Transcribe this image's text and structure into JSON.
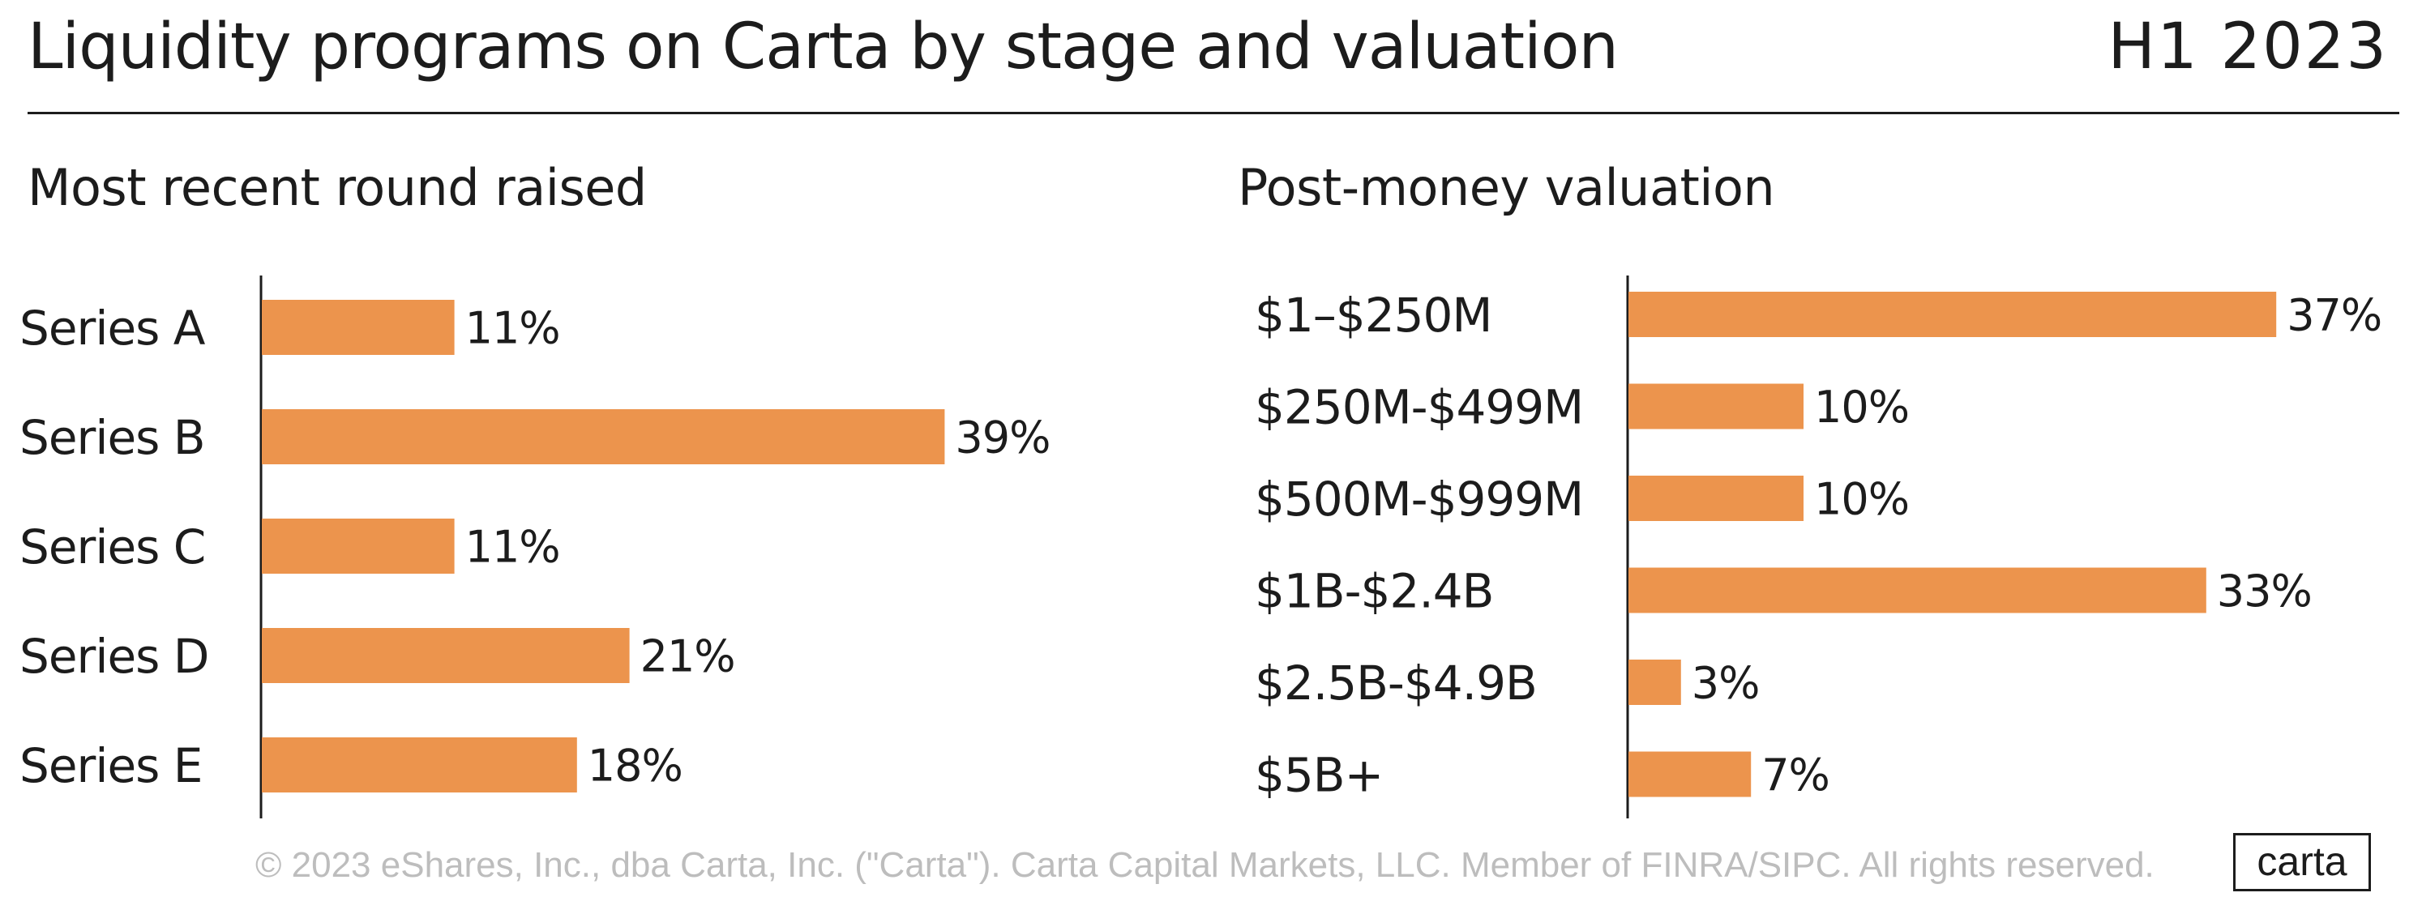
{
  "header": {
    "title": "Liquidity programs on Carta by stage and valuation",
    "period": "H1 2023"
  },
  "colors": {
    "bar": "#ec944d",
    "axis": "#1c1c1c",
    "text": "#1c1c1c",
    "footer": "#bdbdbd"
  },
  "footer": {
    "copyright": "© 2023 eShares, Inc., dba Carta, Inc. (\"Carta\"). Carta Capital Markets, LLC. Member of FINRA/SIPC. All rights reserved.",
    "logo": "carta"
  },
  "chart_data": [
    {
      "type": "bar",
      "orientation": "horizontal",
      "title": "Most recent round raised",
      "categories": [
        "Series A",
        "Series B",
        "Series C",
        "Series D",
        "Series E"
      ],
      "values": [
        11,
        39,
        11,
        21,
        18
      ],
      "labels": [
        "11%",
        "39%",
        "11%",
        "21%",
        "18%"
      ],
      "xlim": [
        0,
        100
      ],
      "grid": false
    },
    {
      "type": "bar",
      "orientation": "horizontal",
      "title": "Post-money valuation",
      "categories": [
        "$1–$250M",
        "$250M-$499M",
        "$500M-$999M",
        "$1B-$2.4B",
        "$2.5B-$4.9B",
        "$5B+"
      ],
      "values": [
        37,
        10,
        10,
        33,
        3,
        7
      ],
      "labels": [
        "37%",
        "10%",
        "10%",
        "33%",
        "3%",
        "7%"
      ],
      "xlim": [
        0,
        100
      ],
      "grid": false
    }
  ]
}
